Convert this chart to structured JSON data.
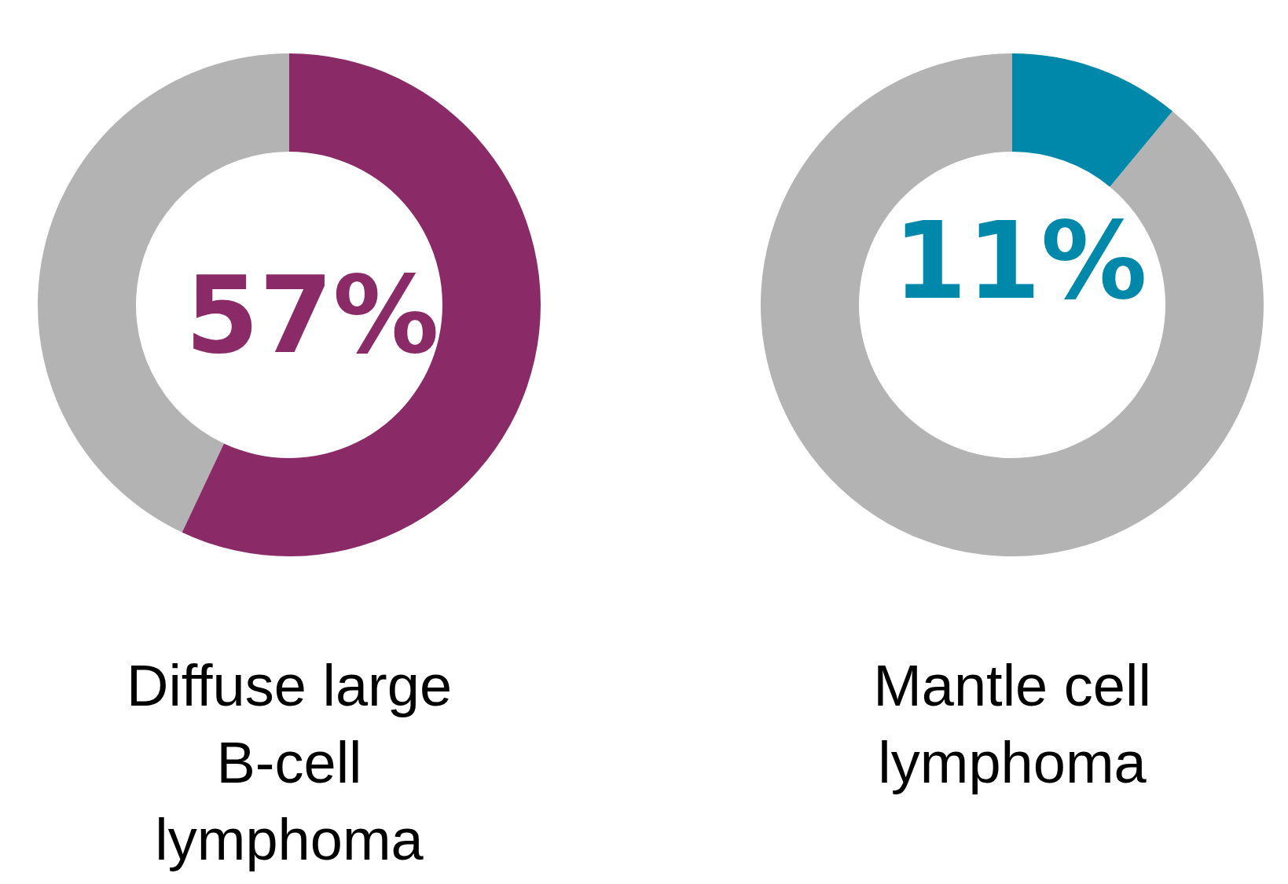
{
  "chart_data": [
    {
      "type": "donut",
      "title": "Diffuse large B-cell lymphoma",
      "categories": [
        null,
        null
      ],
      "values": [
        57,
        43
      ],
      "colors": [
        "#8a2a66",
        "#b3b3b3"
      ],
      "value_labels": [
        "57%",
        null
      ]
    },
    {
      "type": "donut",
      "title": "Mantle cell lymphoma",
      "categories": [
        null,
        null
      ],
      "values": [
        11,
        89
      ],
      "colors": [
        "#0088aa",
        "#b3b3b3"
      ],
      "value_labels": [
        "11%",
        null
      ]
    }
  ]
}
